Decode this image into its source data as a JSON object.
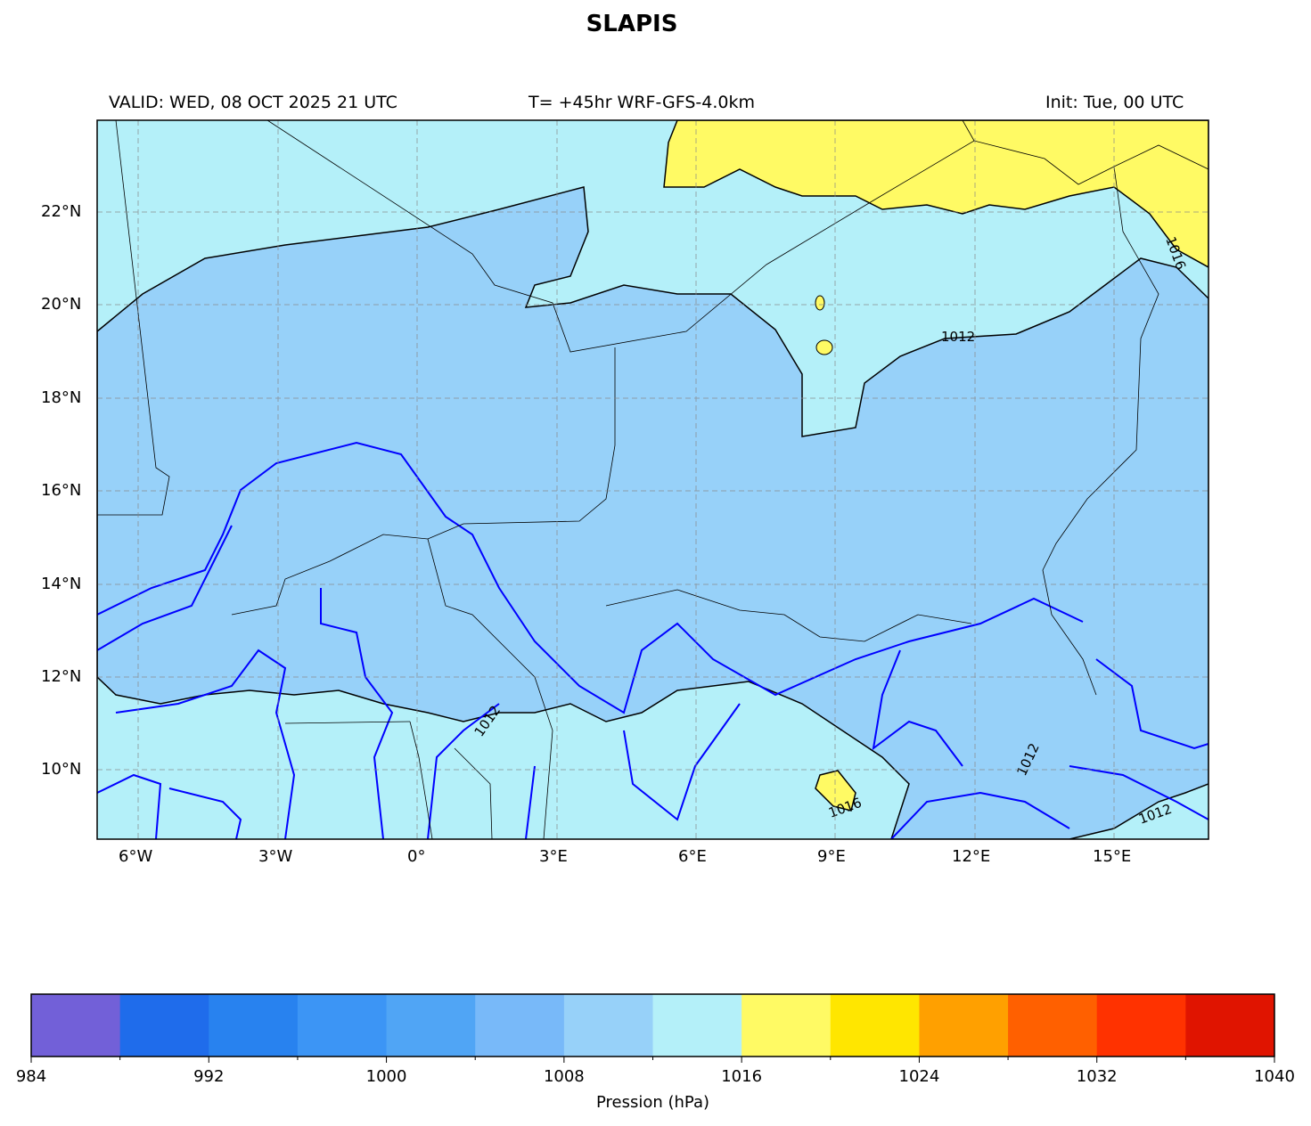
{
  "title": "SLAPIS",
  "subtitle_left": "VALID: WED, 08 OCT 2025 21 UTC",
  "subtitle_center": "T= +45hr WRF-GFS-4.0km",
  "subtitle_right": "Init: Tue, 00 UTC",
  "map": {
    "lon_range": [
      -6.9,
      17.0
    ],
    "lat_range": [
      8.5,
      24.0
    ],
    "lon_ticks": [
      "6°W",
      "3°W",
      "0°",
      "3°E",
      "6°E",
      "9°E",
      "12°E",
      "15°E"
    ],
    "lat_ticks": [
      "22°N",
      "20°N",
      "18°N",
      "16°N",
      "14°N",
      "12°N",
      "10°N"
    ],
    "gridlines": true,
    "contour_labels": [
      "1012",
      "1012",
      "1016",
      "1012",
      "1016",
      "1012"
    ],
    "field_colors": {
      "1008-1012": "#97d1f9",
      "1012-1016": "#b4f0f9",
      "1016-1020": "#fffa64"
    },
    "contour_line_color": "#0000ff"
  },
  "colorbar": {
    "label": "Pression (hPa)",
    "ticks": [
      "984",
      "992",
      "1000",
      "1008",
      "1016",
      "1024",
      "1032",
      "1040"
    ],
    "bounds": [
      984,
      1040
    ],
    "step": 4,
    "colors": [
      "#7260d8",
      "#1f6ceb",
      "#2882ef",
      "#3c95f5",
      "#50a5f5",
      "#78b9f9",
      "#97d1f9",
      "#b4f0f9",
      "#fffa64",
      "#ffe600",
      "#ffa000",
      "#ff6000",
      "#ff3200",
      "#e01400"
    ]
  }
}
